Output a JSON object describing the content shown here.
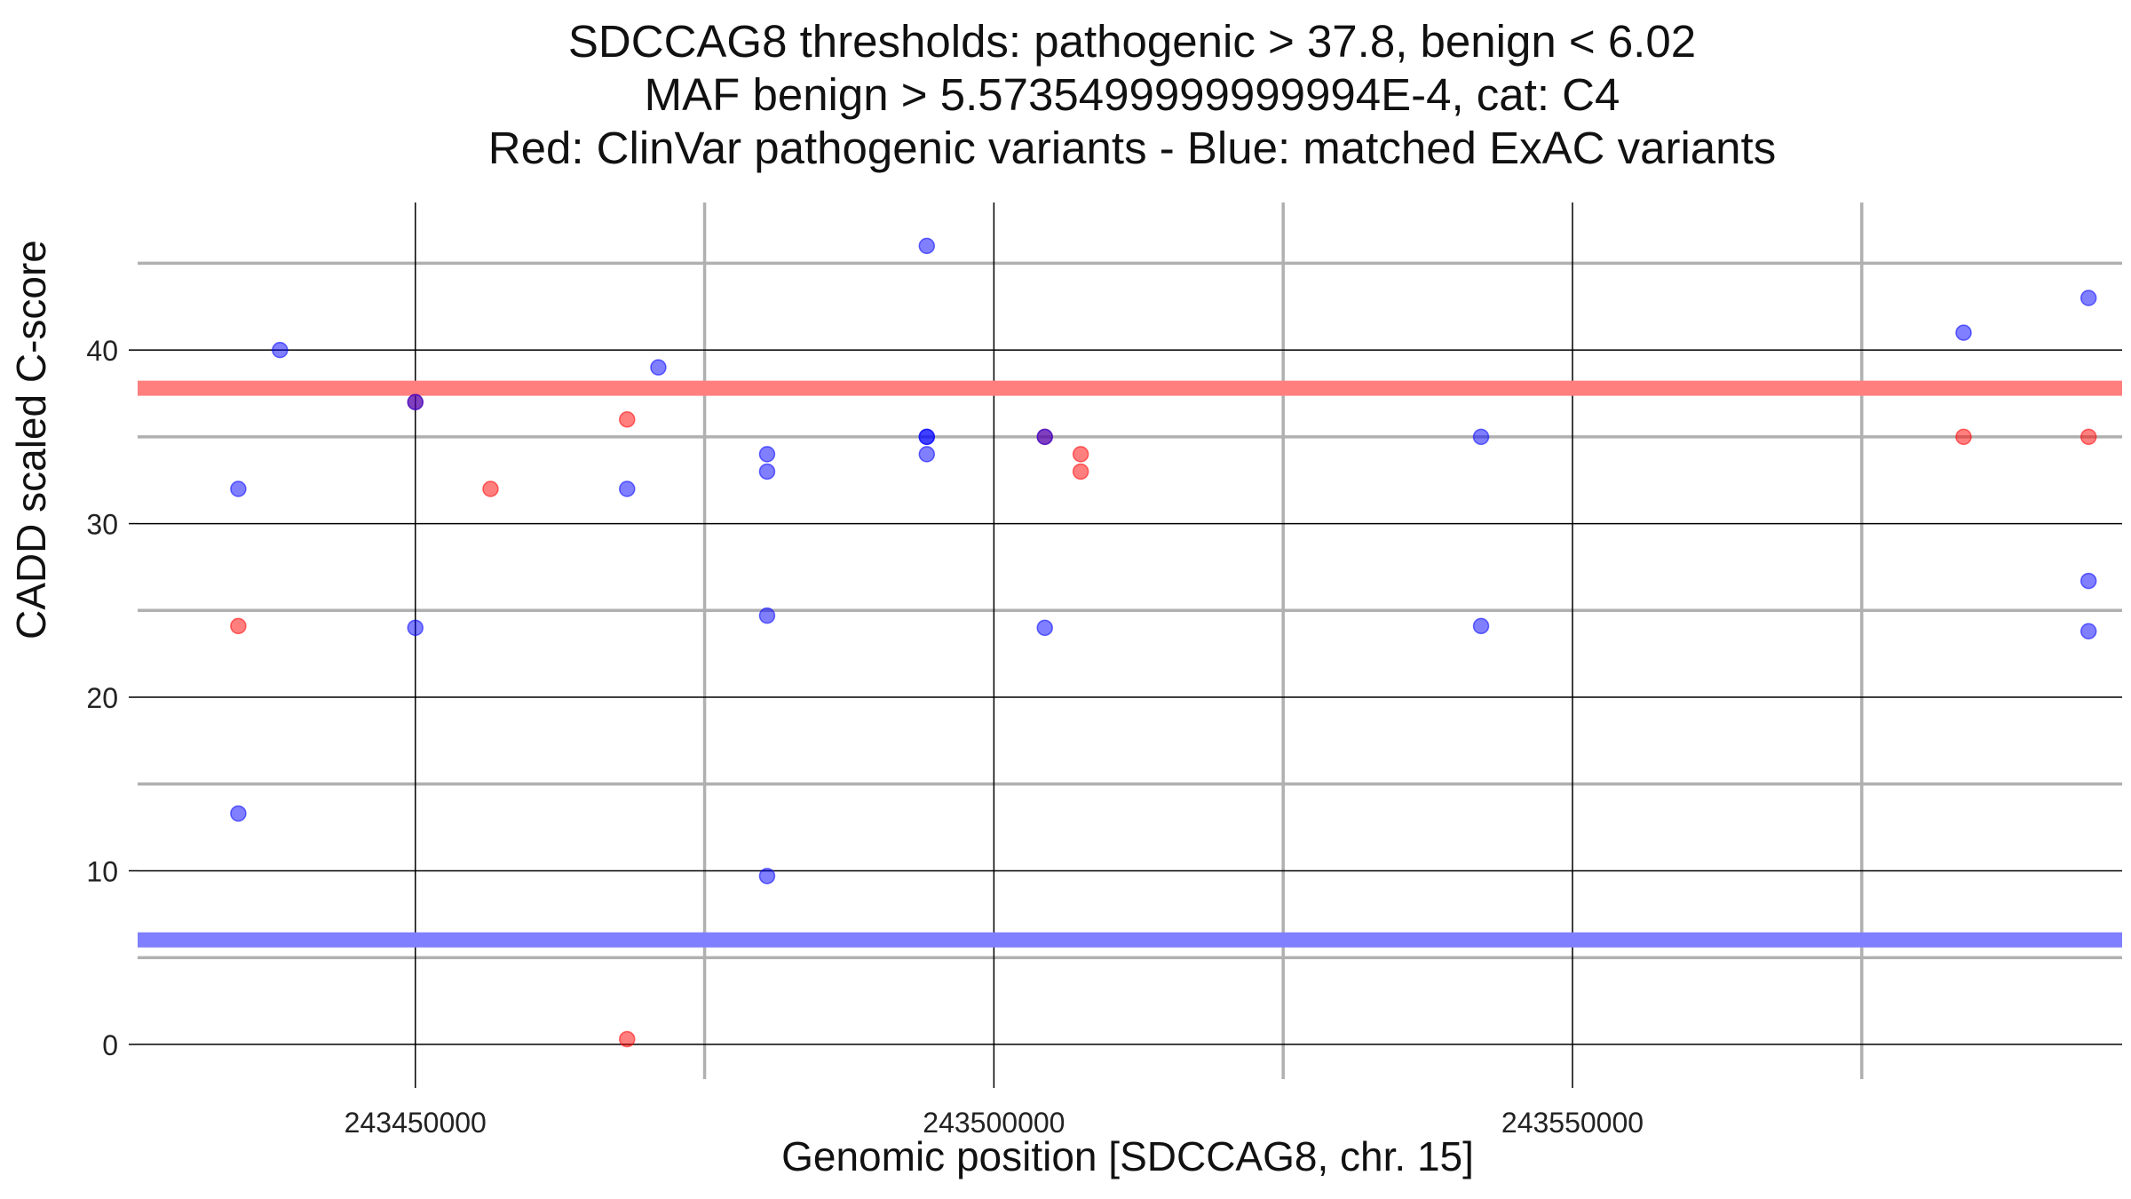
{
  "chart_data": {
    "type": "scatter",
    "title_lines": [
      "SDCCAG8 thresholds: pathogenic > 37.8, benign < 6.02",
      "MAF benign > 5.5735499999999994E-4, cat: C4",
      "Red: ClinVar pathogenic variants - Blue: matched ExAC variants"
    ],
    "xlabel": "Genomic position [SDCCAG8, chr. 15]",
    "ylabel": "CADD scaled C-score",
    "xlim": [
      243426000,
      243597500
    ],
    "ylim": [
      -2,
      48.5
    ],
    "xticks": [
      243450000,
      243500000,
      243550000
    ],
    "xtick_labels": [
      "243450000",
      "243500000",
      "243550000"
    ],
    "xminor": [
      243475000,
      243525000,
      243575000
    ],
    "yticks": [
      0,
      10,
      20,
      30,
      40
    ],
    "ytick_labels": [
      "0",
      "10",
      "20",
      "30",
      "40"
    ],
    "yminor": [
      5,
      15,
      25,
      35,
      45
    ],
    "grid": true,
    "thresholds": {
      "pathogenic": {
        "value": 37.8,
        "color": "#ff7f7f"
      },
      "benign": {
        "value": 6.02,
        "color": "#7f7fff"
      }
    },
    "series": [
      {
        "color": "#ff0000",
        "points": [
          [
            243434700,
            24.1
          ],
          [
            243450000,
            37.0
          ],
          [
            243456500,
            32.0
          ],
          [
            243468300,
            36.0
          ],
          [
            243468300,
            0.3
          ],
          [
            243504400,
            35.0
          ],
          [
            243507500,
            34.0
          ],
          [
            243507500,
            33.0
          ],
          [
            243583800,
            35.0
          ],
          [
            243594600,
            35.0
          ]
        ]
      },
      {
        "color": "#0000ff",
        "points": [
          [
            243434700,
            32.0
          ],
          [
            243434700,
            13.3
          ],
          [
            243438300,
            40.0
          ],
          [
            243450000,
            37.0
          ],
          [
            243450000,
            24.0
          ],
          [
            243468300,
            32.0
          ],
          [
            243471000,
            39.0
          ],
          [
            243480400,
            34.0
          ],
          [
            243480400,
            33.0
          ],
          [
            243480400,
            24.7
          ],
          [
            243480400,
            9.7
          ],
          [
            243494200,
            46.0
          ],
          [
            243494200,
            35.0
          ],
          [
            243494200,
            35.0
          ],
          [
            243494200,
            34.0
          ],
          [
            243504400,
            35.0
          ],
          [
            243504400,
            24.0
          ],
          [
            243542100,
            35.0
          ],
          [
            243542100,
            24.1
          ],
          [
            243583800,
            41.0
          ],
          [
            243594600,
            43.0
          ],
          [
            243594600,
            26.7
          ],
          [
            243594600,
            23.8
          ]
        ]
      }
    ]
  }
}
